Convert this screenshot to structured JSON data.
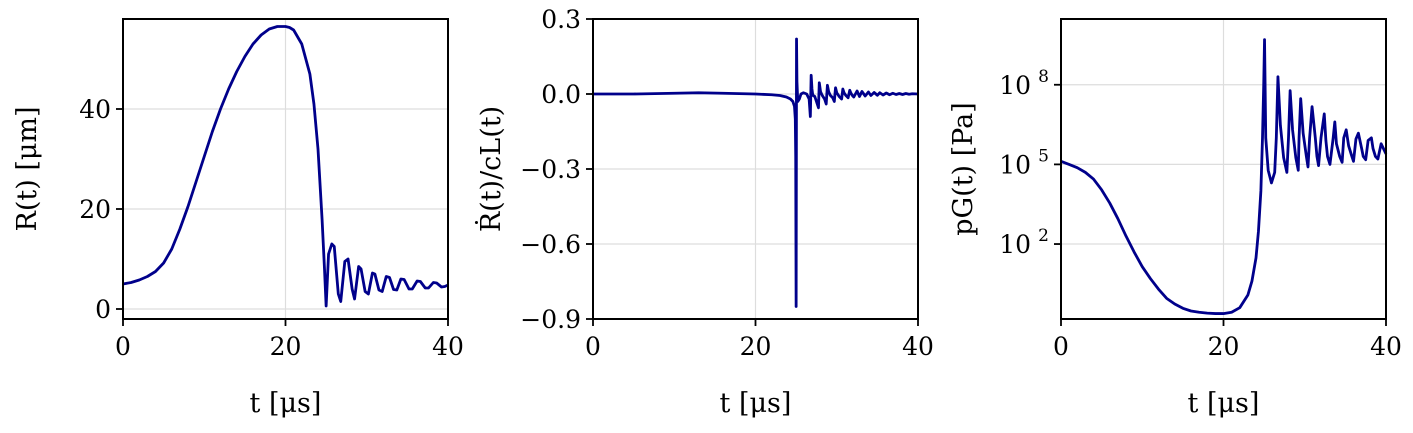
{
  "chart_data": [
    {
      "type": "line",
      "title": "",
      "xlabel": "t [μs]",
      "ylabel": "R(t) [μm]",
      "xlim": [
        0,
        40
      ],
      "ylim": [
        -2,
        58
      ],
      "yscale": "linear",
      "xticks": [
        0,
        20,
        40
      ],
      "xtick_labels": [
        "0",
        "20",
        "40"
      ],
      "yticks": [
        0,
        20,
        40
      ],
      "ytick_labels": [
        "0",
        "20",
        "40"
      ],
      "grid": true,
      "color": "#00008b",
      "series": [
        {
          "x": [
            0,
            1,
            2,
            3,
            4,
            5,
            6,
            7,
            8,
            9,
            10,
            11,
            12,
            13,
            14,
            15,
            16,
            17,
            18,
            19,
            20,
            20.5,
            21,
            22,
            23,
            23.5,
            24,
            24.5,
            24.8,
            25,
            25.3,
            25.7,
            26,
            26.5,
            26.8,
            27.3,
            27.7,
            28.2,
            28.5,
            29,
            29.3,
            29.8,
            30.2,
            30.7,
            31,
            31.5,
            31.9,
            32.4,
            32.8,
            33.3,
            33.7,
            34.2,
            34.6,
            35.2,
            35.6,
            36.2,
            36.6,
            37.2,
            37.6,
            38.2,
            38.6,
            39.2,
            39.6,
            40
          ],
          "y": [
            5,
            5.3,
            5.8,
            6.5,
            7.5,
            9.2,
            12,
            16,
            20.5,
            25.5,
            30.5,
            35.5,
            40,
            44,
            47.5,
            50.5,
            53,
            54.8,
            56,
            56.5,
            56.5,
            56.3,
            55.8,
            53,
            47,
            41,
            32,
            18,
            8,
            0.6,
            11,
            13,
            12.5,
            3,
            1.5,
            9.5,
            10,
            4,
            2,
            8.5,
            8,
            3.5,
            3,
            7.2,
            7,
            3.8,
            3.5,
            6.5,
            6.3,
            3.9,
            3.8,
            6,
            5.9,
            4,
            4,
            5.6,
            5.5,
            4.2,
            4.2,
            5.3,
            5.2,
            4.4,
            4.5,
            4.8
          ]
        }
      ]
    },
    {
      "type": "line",
      "title": "",
      "xlabel": "t [μs]",
      "ylabel": "Ṙ(t)/cL(t)",
      "xlim": [
        0,
        40
      ],
      "ylim": [
        -0.9,
        0.3
      ],
      "yscale": "linear",
      "xticks": [
        0,
        20,
        40
      ],
      "xtick_labels": [
        "0",
        "20",
        "40"
      ],
      "yticks": [
        0.3,
        0.0,
        -0.3,
        -0.6,
        -0.9
      ],
      "ytick_labels": [
        "0.3",
        "0.0",
        "−0.3",
        "−0.6",
        "−0.9"
      ],
      "grid": true,
      "color": "#00008b",
      "series": [
        {
          "x": [
            0,
            5,
            10,
            13,
            16,
            20,
            22,
            23,
            23.8,
            24.3,
            24.6,
            24.8,
            24.9,
            24.95,
            25,
            25.05,
            25.1,
            25.2,
            25.4,
            25.6,
            25.9,
            26.3,
            26.6,
            26.75,
            26.85,
            26.95,
            27.05,
            27.3,
            27.5,
            27.75,
            27.85,
            28,
            28.2,
            28.5,
            28.7,
            28.85,
            29,
            29.2,
            29.5,
            29.7,
            29.85,
            30,
            30.3,
            30.6,
            30.75,
            30.9,
            31.1,
            31.4,
            31.6,
            31.75,
            31.9,
            32.1,
            32.5,
            32.8,
            33.1,
            33.5,
            33.9,
            34.2,
            34.6,
            35,
            35.3,
            35.7,
            36.1,
            36.5,
            36.9,
            37.3,
            37.7,
            38.1,
            38.5,
            38.9,
            39.3,
            40
          ],
          "y": [
            0,
            0,
            0.003,
            0.005,
            0.003,
            0,
            -0.003,
            -0.006,
            -0.012,
            -0.02,
            -0.03,
            -0.05,
            -0.1,
            -0.25,
            -0.85,
            0.22,
            0.05,
            -0.03,
            -0.02,
            0.0,
            0.005,
            0.0,
            -0.02,
            -0.09,
            0.075,
            0.02,
            -0.005,
            -0.01,
            -0.03,
            -0.055,
            0.045,
            0.01,
            -0.005,
            -0.02,
            -0.04,
            0.035,
            0.01,
            -0.005,
            -0.015,
            -0.03,
            0.025,
            0.005,
            -0.01,
            -0.02,
            0.02,
            0.005,
            -0.005,
            -0.015,
            0.015,
            0.003,
            -0.005,
            -0.012,
            0.012,
            -0.01,
            0.01,
            -0.008,
            0.008,
            -0.006,
            0.006,
            -0.005,
            0.005,
            -0.004,
            0.004,
            -0.003,
            0.003,
            -0.002,
            0.002,
            -0.002,
            0.002,
            -0.001,
            0.001,
            0
          ]
        }
      ]
    },
    {
      "type": "line",
      "title": "",
      "xlabel": "t [μs]",
      "ylabel": "pG(t) [Pa]",
      "xlim": [
        0,
        40
      ],
      "ylim": [
        0.15,
        30000000000
      ],
      "yscale": "log",
      "xticks": [
        0,
        20,
        40
      ],
      "xtick_labels": [
        "0",
        "20",
        "40"
      ],
      "yticks": [
        100,
        100000,
        100000000
      ],
      "ytick_labels": [
        "10",
        "10",
        "10"
      ],
      "ytick_exponents": [
        "2",
        "5",
        "8"
      ],
      "grid": true,
      "color": "#00008b",
      "series": [
        {
          "x": [
            0,
            1,
            2,
            3,
            4,
            5,
            6,
            7,
            8,
            9,
            10,
            11,
            12,
            13,
            14,
            15,
            16,
            17,
            18,
            19,
            20,
            21,
            22,
            23,
            23.5,
            24,
            24.3,
            24.6,
            24.8,
            24.95,
            25.05,
            25.2,
            25.5,
            25.9,
            26.3,
            26.5,
            26.7,
            27,
            27.4,
            27.8,
            28,
            28.2,
            28.5,
            28.9,
            29.2,
            29.3,
            29.5,
            29.8,
            30.2,
            30.4,
            30.6,
            30.9,
            31.3,
            31.5,
            31.7,
            32,
            32.4,
            32.6,
            32.8,
            33.1,
            33.5,
            33.7,
            33.9,
            34.3,
            34.6,
            34.8,
            35.1,
            35.4,
            35.8,
            36,
            36.3,
            36.6,
            37,
            37.2,
            37.5,
            37.8,
            38.2,
            38.4,
            38.7,
            39,
            39.4,
            40
          ],
          "y": [
            130000,
            100000,
            75000,
            50000,
            28000,
            11000,
            3500,
            900,
            200,
            50,
            14,
            5,
            2,
            0.9,
            0.55,
            0.38,
            0.3,
            0.27,
            0.25,
            0.24,
            0.24,
            0.27,
            0.4,
            1.2,
            4,
            30,
            300,
            10000,
            1000000,
            100000000,
            5000000000,
            1000000,
            60000,
            20000,
            50000,
            1000000,
            200000000,
            3000000,
            180000,
            50000,
            1000000,
            60000000,
            2000000,
            180000,
            60000,
            1000000,
            30000000,
            1500000,
            200000,
            80000,
            1000000,
            15000000,
            1000000,
            200000,
            90000,
            1000000,
            8000000,
            800000,
            200000,
            100000,
            1000000,
            4000000,
            600000,
            200000,
            120000,
            1000000,
            2000000,
            500000,
            200000,
            130000,
            900000,
            1500000,
            400000,
            200000,
            150000,
            800000,
            1000000,
            400000,
            200000,
            160000,
            600000,
            250000
          ]
        }
      ]
    }
  ]
}
